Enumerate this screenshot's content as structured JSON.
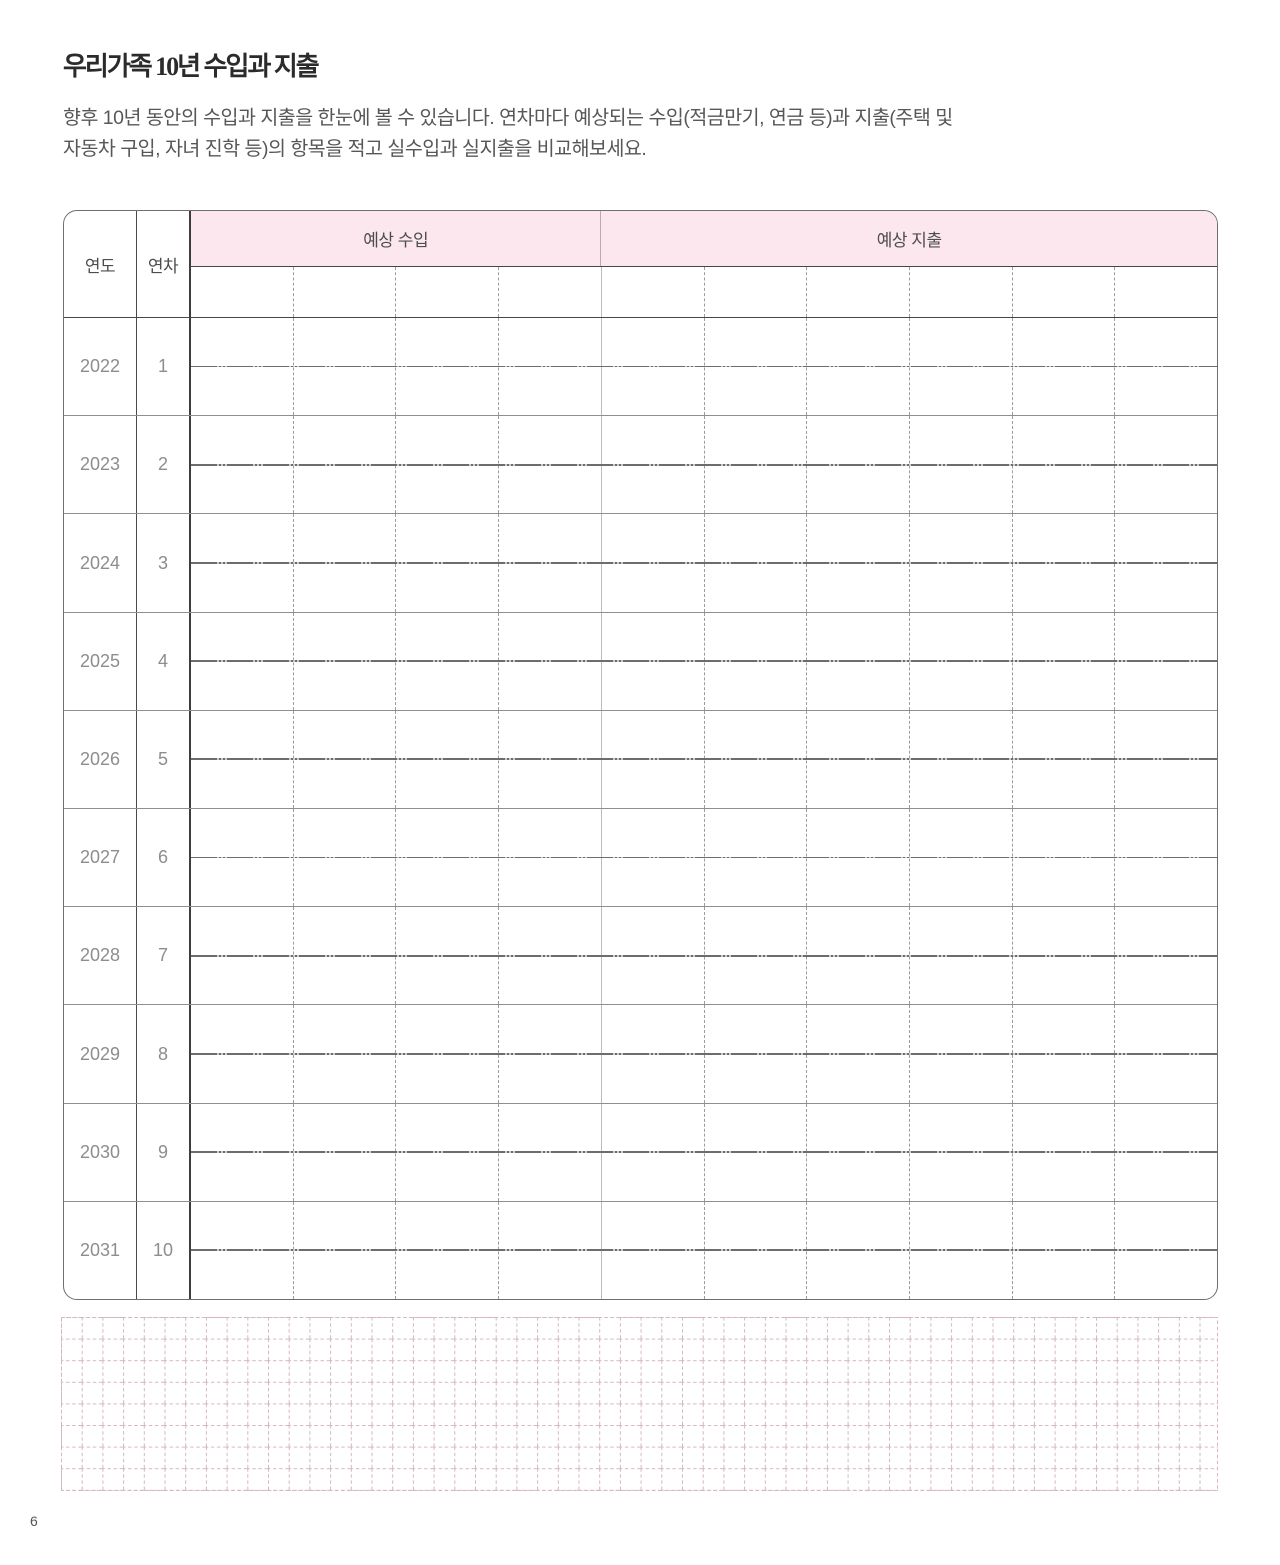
{
  "page": {
    "title": "우리가족 10년 수입과 지출",
    "description_line1": "향후 10년 동안의 수입과 지출을 한눈에 볼 수 있습니다. 연차마다 예상되는 수입(적금만기, 연금 등)과 지출(주택 및",
    "description_line2": "자동차 구입, 자녀 진학 등)의 항목을 적고 실수입과 실지출을 비교해보세요.",
    "page_number": "6"
  },
  "table": {
    "col_year_label": "연도",
    "col_index_label": "연차",
    "income_header": "예상 수입",
    "expense_header": "예상 지출",
    "income_subcolumns": 4,
    "expense_subcolumns": 6,
    "rows": [
      {
        "year": "2022",
        "index": "1"
      },
      {
        "year": "2023",
        "index": "2"
      },
      {
        "year": "2024",
        "index": "3"
      },
      {
        "year": "2025",
        "index": "4"
      },
      {
        "year": "2026",
        "index": "5"
      },
      {
        "year": "2027",
        "index": "6"
      },
      {
        "year": "2028",
        "index": "7"
      },
      {
        "year": "2029",
        "index": "8"
      },
      {
        "year": "2030",
        "index": "9"
      },
      {
        "year": "2031",
        "index": "10"
      }
    ]
  },
  "colors": {
    "header_pink": "#fbe7ed",
    "grid_paper_pink": "#d6b6c6",
    "dark_line": "#474747",
    "row_line": "#8f8f8f",
    "dashed_line": "#9c9c9c",
    "text_gray": "#575757"
  }
}
